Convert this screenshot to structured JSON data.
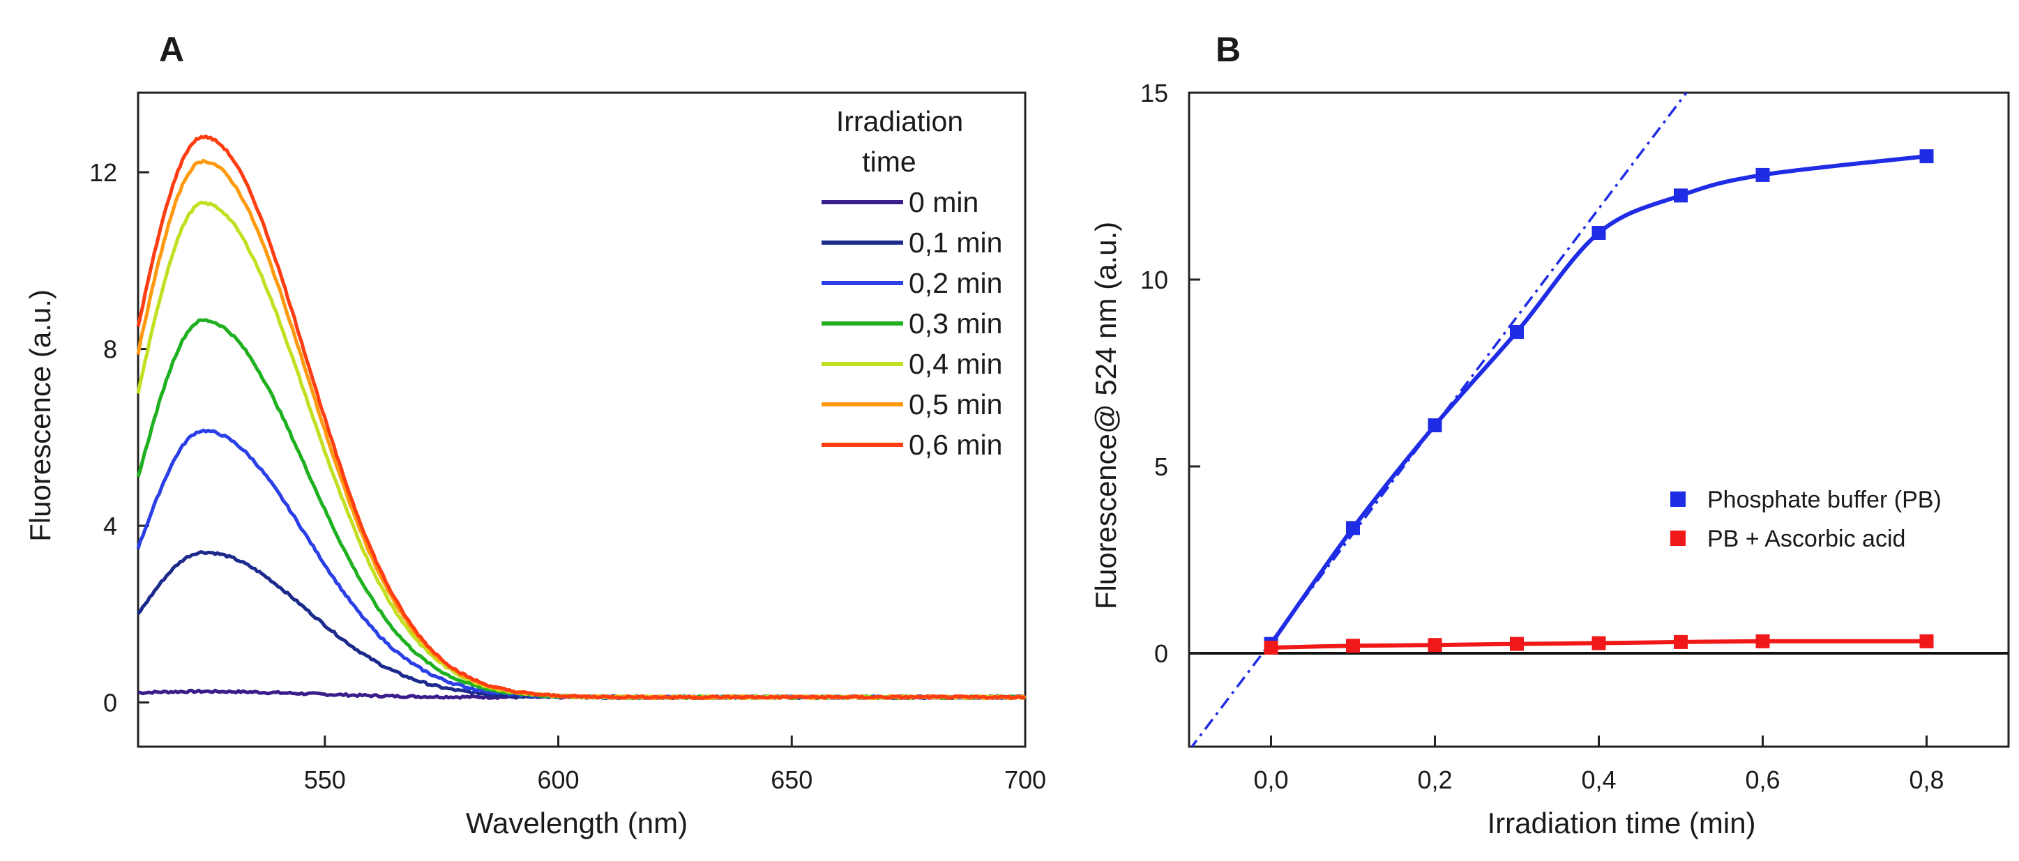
{
  "chart_data": [
    {
      "panel": "A",
      "type": "line",
      "xlabel": "Wavelength (nm)",
      "ylabel": "Fluorescence (a.u.)",
      "xlim": [
        510,
        700
      ],
      "ylim": [
        -1,
        13.8
      ],
      "xticks": [
        550,
        600,
        650,
        700
      ],
      "xtick_labels": [
        "550",
        "600",
        "650",
        "700"
      ],
      "yticks": [
        0,
        4,
        8,
        12
      ],
      "ytick_labels": [
        "0",
        "4",
        "8",
        "12"
      ],
      "legend": {
        "title_line1": "Irradiation",
        "title_line2": "time",
        "position": "top-right"
      },
      "peak_wavelength": 524,
      "series": [
        {
          "name": "0 min",
          "time": 0.0,
          "color": "#3a1d8a",
          "peak": 0.25,
          "start": 0.22
        },
        {
          "name": "0,1 min",
          "time": 0.1,
          "color": "#1c2a8c",
          "peak": 3.4,
          "start": 2.0
        },
        {
          "name": "0,2 min",
          "time": 0.2,
          "color": "#2a3fe6",
          "peak": 6.15,
          "start": 3.5
        },
        {
          "name": "0,3 min",
          "time": 0.3,
          "color": "#1fb020",
          "peak": 8.65,
          "start": 5.1
        },
        {
          "name": "0,4 min",
          "time": 0.4,
          "color": "#c2e021",
          "peak": 11.3,
          "start": 7.0
        },
        {
          "name": "0,5 min",
          "time": 0.5,
          "color": "#ff9a10",
          "peak": 12.25,
          "start": 7.9
        },
        {
          "name": "0,6 min",
          "time": 0.6,
          "color": "#ff3d12",
          "peak": 12.8,
          "start": 8.5
        }
      ]
    },
    {
      "panel": "B",
      "type": "scatter",
      "xlabel": "Irradiation time (min)",
      "ylabel": "Fluorescence@ 524 nm (a.u.)",
      "xlim": [
        -0.1,
        0.9
      ],
      "ylim": [
        -2.5,
        15
      ],
      "xticks": [
        0,
        0.2,
        0.4,
        0.6,
        0.8
      ],
      "xtick_labels": [
        "0,0",
        "0,2",
        "0,4",
        "0,6",
        "0,8"
      ],
      "yticks": [
        0,
        5,
        10,
        15
      ],
      "ytick_labels": [
        "0",
        "5",
        "10",
        "15"
      ],
      "zero_line": 0,
      "legend_position": "center-right",
      "series": [
        {
          "name": "Phosphate buffer (PB)",
          "color": "#1f2ce6",
          "x": [
            0,
            0.1,
            0.2,
            0.3,
            0.4,
            0.5,
            0.6,
            0.8
          ],
          "y": [
            0.25,
            3.35,
            6.1,
            8.6,
            11.25,
            12.25,
            12.8,
            13.3
          ]
        },
        {
          "name": "PB + Ascorbic acid",
          "color": "#f01818",
          "x": [
            0,
            0.1,
            0.2,
            0.3,
            0.4,
            0.5,
            0.6,
            0.8
          ],
          "y": [
            0.15,
            0.2,
            0.22,
            0.25,
            0.27,
            0.3,
            0.32,
            0.32
          ]
        }
      ],
      "linear_fit": {
        "slope": 29.0,
        "intercept": 0.3,
        "style": "dash-dot",
        "color": "#1f2ce6"
      }
    }
  ]
}
